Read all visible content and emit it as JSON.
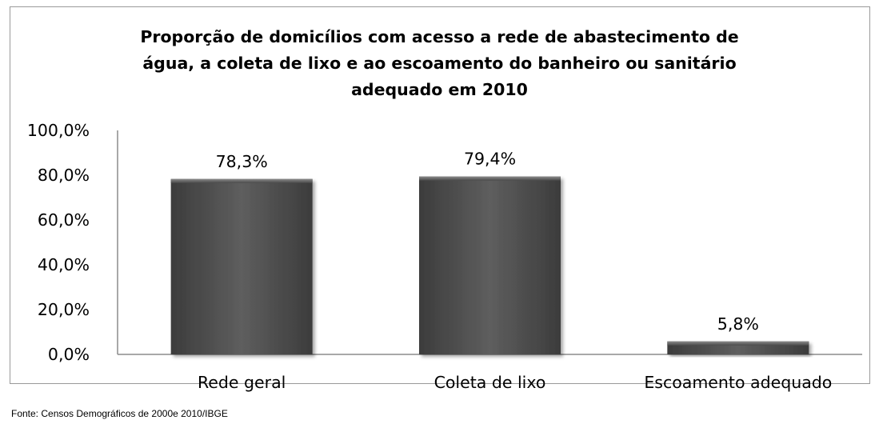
{
  "chart_data": {
    "type": "bar",
    "title": "Proporção de domicílios com acesso  a rede de abastecimento de\nágua, a coleta de lixo e ao escoamento do banheiro ou sanitário\nadequado em 2010",
    "categories": [
      "Rede geral",
      "Coleta de lixo",
      "Escoamento adequado"
    ],
    "values": [
      78.3,
      79.4,
      5.8
    ],
    "data_labels": [
      "78,3%",
      "79,4%",
      "5,8%"
    ],
    "y_ticks": [
      "0,0%",
      "20,0%",
      "40,0%",
      "60,0%",
      "80,0%",
      "100,0%"
    ],
    "ylim": [
      0,
      100
    ],
    "xlabel": "",
    "ylabel": "",
    "grid": false,
    "legend": "none",
    "bar_color": "#555555"
  },
  "source": "Fonte: Censos Demográficos de 2000e 2010/IBGE"
}
